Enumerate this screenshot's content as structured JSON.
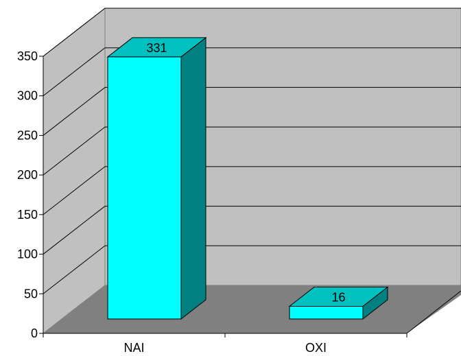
{
  "chart_data": {
    "type": "bar",
    "style": "3d-column",
    "categories": [
      "NAI",
      "OXI"
    ],
    "values": [
      331,
      16
    ],
    "data_labels": [
      "331",
      "16"
    ],
    "y_ticks": [
      "0",
      "50",
      "100",
      "150",
      "200",
      "250",
      "300",
      "350"
    ],
    "ylim": [
      0,
      350
    ],
    "grid": true,
    "legend": "none",
    "title": "",
    "xlabel": "",
    "ylabel": ""
  },
  "colors": {
    "wall": "#c0c0c0",
    "floor": "#808080",
    "bar_front": "#00ffff",
    "bar_top": "#00c0c0",
    "bar_side": "#008080",
    "gridline": "#000000"
  }
}
